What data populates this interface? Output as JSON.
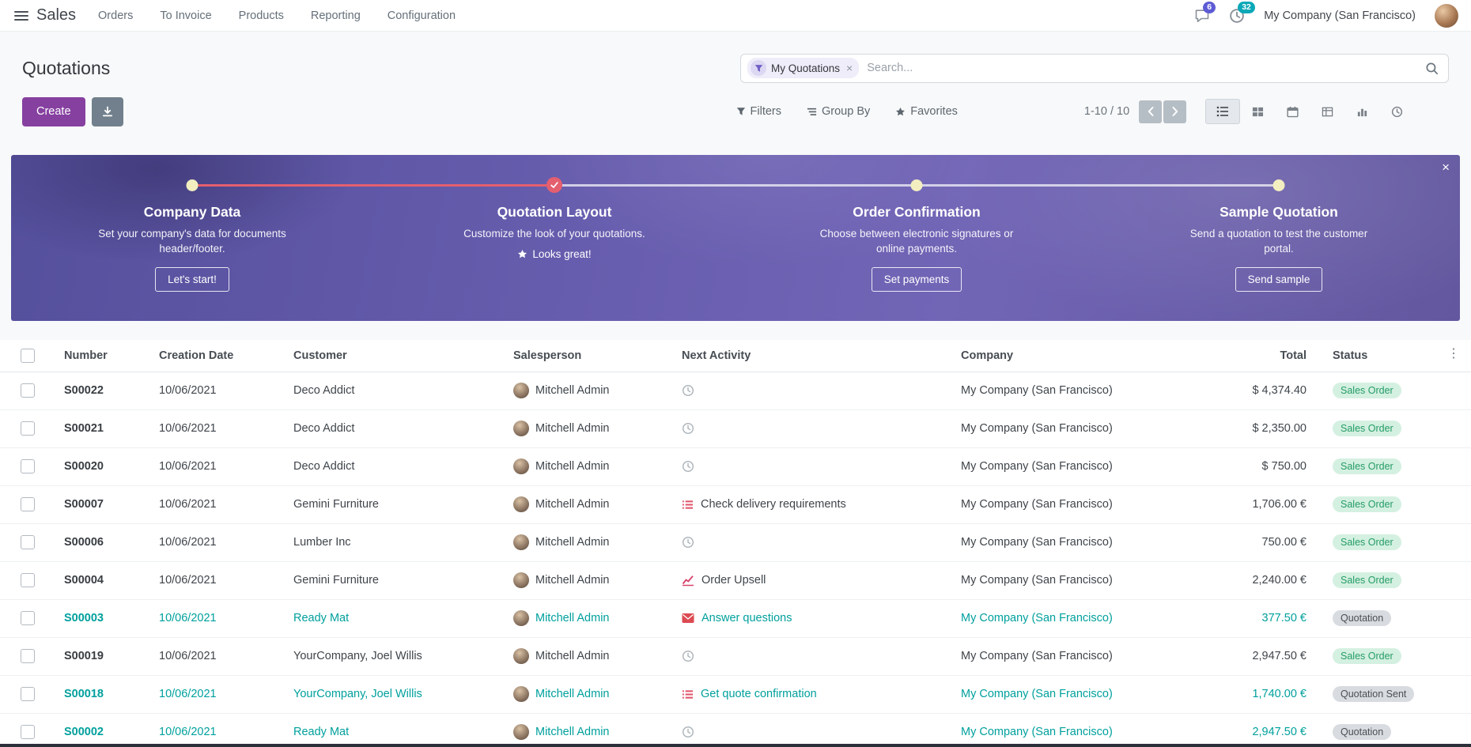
{
  "colors": {
    "primary": "#8640a0",
    "banner_purple": "#675dae",
    "accent_teal": "#00a09d",
    "activity_red": "#dc4a5c",
    "done_step": "#e45f6f",
    "success_badge_bg": "#d4f0e1",
    "success_badge_text": "#259c66",
    "muted_badge_bg": "#d8dbdf"
  },
  "navbar": {
    "app_name": "Sales",
    "menus": [
      "Orders",
      "To Invoice",
      "Products",
      "Reporting",
      "Configuration"
    ],
    "messages_badge": "6",
    "activities_badge": "32",
    "company": "My Company (San Francisco)",
    "icons": [
      "apps-menu-icon",
      "message-bubble-icon",
      "activity-clock-icon",
      "user-avatar"
    ]
  },
  "control_panel": {
    "title": "Quotations",
    "search_facet": "My Quotations",
    "search_placeholder": "Search...",
    "create_label": "Create",
    "filters_label": "Filters",
    "group_by_label": "Group By",
    "favorites_label": "Favorites",
    "pager": "1-10 / 10",
    "view_switcher": [
      "list",
      "kanban",
      "calendar",
      "pivot",
      "graph",
      "activity"
    ],
    "active_view": "list"
  },
  "onboarding": {
    "close_label": "×",
    "steps": [
      {
        "title": "Company Data",
        "description": "Set your company's data for documents header/footer.",
        "action": "Let's start!",
        "type": "button",
        "done": false
      },
      {
        "title": "Quotation Layout",
        "description": "Customize the look of your quotations.",
        "action": "Looks great!",
        "type": "star-text",
        "done": true
      },
      {
        "title": "Order Confirmation",
        "description": "Choose between electronic signatures or online payments.",
        "action": "Set payments",
        "type": "button",
        "done": false
      },
      {
        "title": "Sample Quotation",
        "description": "Send a quotation to test the customer portal.",
        "action": "Send sample",
        "type": "button",
        "done": false
      }
    ]
  },
  "table": {
    "columns": [
      "Number",
      "Creation Date",
      "Customer",
      "Salesperson",
      "Next Activity",
      "Company",
      "Total",
      "Status"
    ],
    "rows": [
      {
        "number": "S00022",
        "creation_date": "10/06/2021",
        "customer": "Deco Addict",
        "salesperson": "Mitchell Admin",
        "activity": {
          "icon": "clock",
          "label": ""
        },
        "company": "My Company (San Francisco)",
        "total": "$ 4,374.40",
        "status": "Sales Order",
        "highlighted": false
      },
      {
        "number": "S00021",
        "creation_date": "10/06/2021",
        "customer": "Deco Addict",
        "salesperson": "Mitchell Admin",
        "activity": {
          "icon": "clock",
          "label": ""
        },
        "company": "My Company (San Francisco)",
        "total": "$ 2,350.00",
        "status": "Sales Order",
        "highlighted": false
      },
      {
        "number": "S00020",
        "creation_date": "10/06/2021",
        "customer": "Deco Addict",
        "salesperson": "Mitchell Admin",
        "activity": {
          "icon": "clock",
          "label": ""
        },
        "company": "My Company (San Francisco)",
        "total": "$ 750.00",
        "status": "Sales Order",
        "highlighted": false
      },
      {
        "number": "S00007",
        "creation_date": "10/06/2021",
        "customer": "Gemini Furniture",
        "salesperson": "Mitchell Admin",
        "activity": {
          "icon": "list",
          "label": "Check delivery requirements"
        },
        "company": "My Company (San Francisco)",
        "total": "1,706.00 €",
        "status": "Sales Order",
        "highlighted": false
      },
      {
        "number": "S00006",
        "creation_date": "10/06/2021",
        "customer": "Lumber Inc",
        "salesperson": "Mitchell Admin",
        "activity": {
          "icon": "clock",
          "label": ""
        },
        "company": "My Company (San Francisco)",
        "total": "750.00 €",
        "status": "Sales Order",
        "highlighted": false
      },
      {
        "number": "S00004",
        "creation_date": "10/06/2021",
        "customer": "Gemini Furniture",
        "salesperson": "Mitchell Admin",
        "activity": {
          "icon": "chart",
          "label": "Order Upsell"
        },
        "company": "My Company (San Francisco)",
        "total": "2,240.00 €",
        "status": "Sales Order",
        "highlighted": false
      },
      {
        "number": "S00003",
        "creation_date": "10/06/2021",
        "customer": "Ready Mat",
        "salesperson": "Mitchell Admin",
        "activity": {
          "icon": "mail",
          "label": "Answer questions"
        },
        "company": "My Company (San Francisco)",
        "total": "377.50 €",
        "status": "Quotation",
        "highlighted": true
      },
      {
        "number": "S00019",
        "creation_date": "10/06/2021",
        "customer": "YourCompany, Joel Willis",
        "salesperson": "Mitchell Admin",
        "activity": {
          "icon": "clock",
          "label": ""
        },
        "company": "My Company (San Francisco)",
        "total": "2,947.50 €",
        "status": "Sales Order",
        "highlighted": false
      },
      {
        "number": "S00018",
        "creation_date": "10/06/2021",
        "customer": "YourCompany, Joel Willis",
        "salesperson": "Mitchell Admin",
        "activity": {
          "icon": "list",
          "label": "Get quote confirmation"
        },
        "company": "My Company (San Francisco)",
        "total": "1,740.00 €",
        "status": "Quotation Sent",
        "highlighted": true
      },
      {
        "number": "S00002",
        "creation_date": "10/06/2021",
        "customer": "Ready Mat",
        "salesperson": "Mitchell Admin",
        "activity": {
          "icon": "clock",
          "label": ""
        },
        "company": "My Company (San Francisco)",
        "total": "2,947.50 €",
        "status": "Quotation",
        "highlighted": true
      }
    ]
  }
}
